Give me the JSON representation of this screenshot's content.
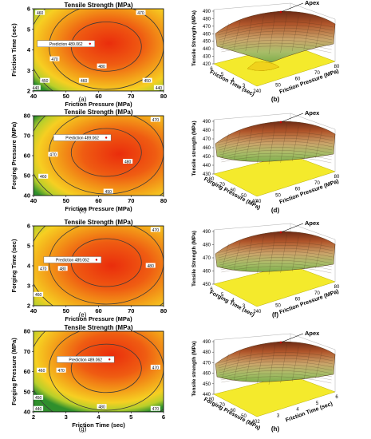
{
  "figure": {
    "colors": {
      "low": "#3f9a2a",
      "mid": "#f2c21a",
      "high": "#ea3a10",
      "contour": "#3a3a3a",
      "floor": "#f4ea2c"
    },
    "chart_data": [
      {
        "type": "contour",
        "panel": "a",
        "caption": "(a)",
        "title": "Tensile Strength (MPa)",
        "xlabel": "Friction Pressure (MPa)",
        "ylabel": "Friction Time (sec)",
        "xlim": [
          40,
          80
        ],
        "ylim": [
          2,
          6
        ],
        "xticks": [
          "40",
          "50",
          "60",
          "70",
          "80"
        ],
        "yticks": [
          "2",
          "3",
          "4",
          "5",
          "6"
        ],
        "contour_levels": [
          440,
          450,
          460,
          470,
          480
        ],
        "annotations": [
          {
            "text": "460",
            "x": 42,
            "y": 5.8
          },
          {
            "text": "470",
            "x": 73,
            "y": 5.8
          },
          {
            "text": "470",
            "x": 46.5,
            "y": 3.55
          },
          {
            "text": "480",
            "x": 61,
            "y": 3.2
          },
          {
            "text": "450",
            "x": 43.5,
            "y": 2.5
          },
          {
            "text": "460",
            "x": 55.5,
            "y": 2.5
          },
          {
            "text": "450",
            "x": 75,
            "y": 2.5
          },
          {
            "text": "440",
            "x": 40.7,
            "y": 2.15
          },
          {
            "text": "440",
            "x": 78.5,
            "y": 2.15
          }
        ],
        "prediction": {
          "label": "Prediction",
          "value": 489.062,
          "x": 50,
          "y": 4.3
        }
      },
      {
        "type": "surface",
        "panel": "b",
        "caption": "(b)",
        "apex_label": "Apex",
        "xlabel": "Friction Time (sec)",
        "ylabel": "Friction Pressure (MPa)",
        "zlabel": "Tensile Strength (MPa)",
        "zticks": [
          "420",
          "430",
          "440",
          "450",
          "460",
          "470",
          "480",
          "490"
        ],
        "front_axis_ticks": [
          "6",
          "5",
          "4",
          "3",
          "2"
        ],
        "right_axis_ticks": [
          "40",
          "50",
          "60",
          "70",
          "80"
        ]
      },
      {
        "type": "contour",
        "panel": "c",
        "caption": "(c)",
        "title": "Tensile Strength (MPa)",
        "xlabel": "Friction Pressure (MPa)",
        "ylabel": "Forging Pressure (MPa)",
        "xlim": [
          40,
          80
        ],
        "ylim": [
          40,
          80
        ],
        "xticks": [
          "40",
          "50",
          "60",
          "70",
          "80"
        ],
        "yticks": [
          "40",
          "50",
          "60",
          "70",
          "80"
        ],
        "contour_levels": [
          450,
          460,
          470,
          480
        ],
        "annotations": [
          {
            "text": "470",
            "x": 77.5,
            "y": 78
          },
          {
            "text": "470",
            "x": 46,
            "y": 60.5
          },
          {
            "text": "460",
            "x": 43,
            "y": 49.5
          },
          {
            "text": "480",
            "x": 69,
            "y": 57
          },
          {
            "text": "450",
            "x": 63,
            "y": 42
          }
        ],
        "prediction": {
          "label": "Prediction",
          "value": 489.062,
          "x": 55,
          "y": 69
        }
      },
      {
        "type": "surface",
        "panel": "d",
        "caption": "(d)",
        "apex_label": "Apex",
        "xlabel": "Forging Pressure (MPa)",
        "ylabel": "Friction Pressure (MPa)",
        "zlabel": "Tensile strength (MPa)",
        "zticks": [
          "430",
          "440",
          "450",
          "460",
          "470",
          "480",
          "490"
        ],
        "front_axis_ticks": [
          "80",
          "70",
          "60",
          "50",
          "40"
        ],
        "right_axis_ticks": [
          "40",
          "50",
          "60",
          "70",
          "80"
        ]
      },
      {
        "type": "contour",
        "panel": "e",
        "caption": "(e)",
        "title": "Tensile Strength (MPa)",
        "xlabel": "Friction Pressure (MPa)",
        "ylabel": "Forging Time (sec)",
        "xlim": [
          40,
          80
        ],
        "ylim": [
          2,
          6
        ],
        "xticks": [
          "40",
          "50",
          "60",
          "70",
          "80"
        ],
        "yticks": [
          "2",
          "3",
          "4",
          "5",
          "6"
        ],
        "contour_levels": [
          460,
          470,
          480
        ],
        "annotations": [
          {
            "text": "470",
            "x": 77.5,
            "y": 5.8
          },
          {
            "text": "470",
            "x": 43,
            "y": 3.85
          },
          {
            "text": "480",
            "x": 49,
            "y": 3.85
          },
          {
            "text": "480",
            "x": 76,
            "y": 4.0
          },
          {
            "text": "460",
            "x": 41.5,
            "y": 2.55
          }
        ],
        "prediction": {
          "label": "Prediction",
          "value": 489.062,
          "x": 52,
          "y": 4.3
        }
      },
      {
        "type": "surface",
        "panel": "f",
        "caption": "(f)",
        "apex_label": "Apex",
        "xlabel": "Forging Time (sec)",
        "ylabel": "Friction Pressure (MPa)",
        "zlabel": "Tensile Strength (MPa)",
        "zticks": [
          "450",
          "460",
          "470",
          "480",
          "490"
        ],
        "front_axis_ticks": [
          "6",
          "5",
          "4",
          "3",
          "2"
        ],
        "right_axis_ticks": [
          "40",
          "50",
          "60",
          "70",
          "80"
        ]
      },
      {
        "type": "contour",
        "panel": "g",
        "caption": "(g)",
        "title": "Tensile Strength (MPa)",
        "xlabel": "Friction Time (sec)",
        "ylabel": "Forging Pressure (MPa)",
        "xlim": [
          2,
          6
        ],
        "ylim": [
          40,
          80
        ],
        "xticks": [
          "2",
          "3",
          "4",
          "5",
          "6"
        ],
        "yticks": [
          "40",
          "50",
          "60",
          "70",
          "80"
        ],
        "contour_levels": [
          440,
          450,
          460,
          470,
          480
        ],
        "annotations": [
          {
            "text": "460",
            "x": 2.25,
            "y": 60.5
          },
          {
            "text": "470",
            "x": 2.85,
            "y": 60.5
          },
          {
            "text": "470",
            "x": 5.75,
            "y": 62
          },
          {
            "text": "450",
            "x": 2.15,
            "y": 47
          },
          {
            "text": "440",
            "x": 2.15,
            "y": 41.5
          },
          {
            "text": "480",
            "x": 4.1,
            "y": 42.5
          },
          {
            "text": "470",
            "x": 5.75,
            "y": 41.5
          }
        ],
        "prediction": {
          "label": "Prediction",
          "value": 489.062,
          "x": 3.6,
          "y": 66
        }
      },
      {
        "type": "surface",
        "panel": "h",
        "caption": "(h)",
        "apex_label": "Apex",
        "xlabel": "Forging Pressure (MPa)",
        "ylabel": "Friction Time (sec)",
        "zlabel": "Tensile strength (MPa)",
        "zticks": [
          "440",
          "450",
          "460",
          "470",
          "480",
          "490"
        ],
        "front_axis_ticks": [
          "80",
          "70",
          "60",
          "50",
          "40"
        ],
        "right_axis_ticks": [
          "2",
          "3",
          "4",
          "5",
          "6"
        ]
      }
    ]
  }
}
